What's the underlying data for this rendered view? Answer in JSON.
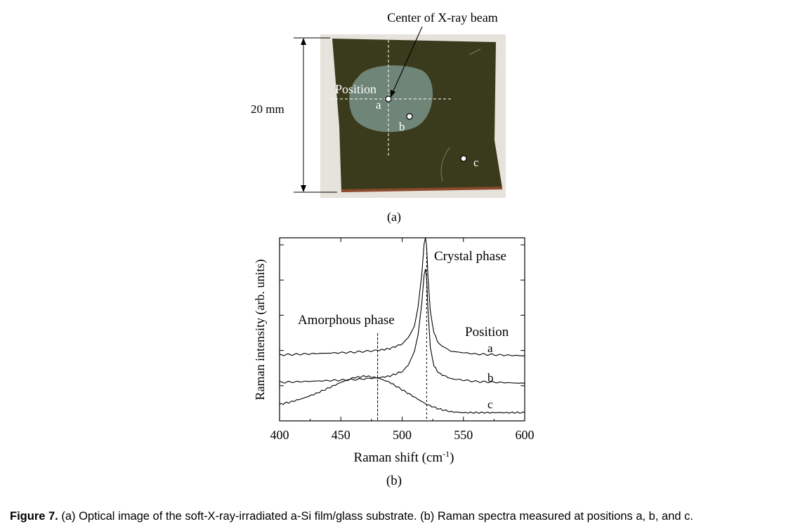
{
  "panel_a": {
    "annotation_beam": "Center of X-ray beam",
    "annotation_position": "Position",
    "scale_label": "20 mm",
    "point_labels": [
      "a",
      "b",
      "c"
    ],
    "sublabel": "(a)",
    "colors": {
      "film": "#3a3b1c",
      "irradiated_spot": "#6f8578",
      "markers": "#ffffff",
      "background": "#e6e2dc"
    }
  },
  "chart_data": {
    "type": "line",
    "xlabel_main": "Raman shift (cm",
    "xlabel_sup": "-1",
    "xlabel_tail": ")",
    "ylabel": "Raman intensity (arb. units)",
    "xlim": [
      400,
      600
    ],
    "xticks": [
      "400",
      "450",
      "500",
      "550",
      "600"
    ],
    "ylim": [
      0,
      1
    ],
    "annotations": {
      "crystal": "Crystal phase",
      "amorphous": "Amorphous phase",
      "position_header": "Position"
    },
    "reference_lines": [
      {
        "x": 480,
        "style": "dashed",
        "meaning": "amorphous"
      },
      {
        "x": 520,
        "style": "dashed",
        "meaning": "crystal"
      }
    ],
    "series": [
      {
        "name": "a",
        "x": [
          400,
          420,
          440,
          460,
          480,
          490,
          500,
          505,
          510,
          513,
          516,
          518,
          519,
          520,
          521,
          523,
          526,
          530,
          540,
          560,
          580,
          600
        ],
        "y": [
          0.36,
          0.365,
          0.37,
          0.375,
          0.385,
          0.395,
          0.42,
          0.45,
          0.52,
          0.62,
          0.8,
          0.97,
          1.0,
          0.95,
          0.8,
          0.6,
          0.48,
          0.42,
          0.38,
          0.365,
          0.36,
          0.355
        ]
      },
      {
        "name": "b",
        "x": [
          400,
          420,
          440,
          460,
          480,
          490,
          500,
          505,
          510,
          513,
          516,
          518,
          519,
          520,
          521,
          523,
          526,
          530,
          540,
          560,
          580,
          600
        ],
        "y": [
          0.21,
          0.215,
          0.22,
          0.225,
          0.235,
          0.245,
          0.27,
          0.3,
          0.38,
          0.47,
          0.64,
          0.8,
          0.83,
          0.78,
          0.62,
          0.4,
          0.3,
          0.26,
          0.23,
          0.215,
          0.21,
          0.205
        ]
      },
      {
        "name": "c",
        "x": [
          400,
          410,
          420,
          430,
          440,
          450,
          460,
          470,
          480,
          490,
          500,
          510,
          520,
          530,
          540,
          550,
          560,
          570,
          580,
          590,
          600
        ],
        "y": [
          0.09,
          0.105,
          0.125,
          0.15,
          0.18,
          0.21,
          0.235,
          0.245,
          0.235,
          0.21,
          0.17,
          0.13,
          0.09,
          0.065,
          0.05,
          0.045,
          0.045,
          0.045,
          0.045,
          0.045,
          0.045
        ]
      }
    ],
    "series_labels": [
      "a",
      "b",
      "c"
    ],
    "sublabel": "(b)"
  },
  "caption": {
    "bold": "Figure 7.",
    "text": " (a) Optical image of the soft-X-ray-irradiated a-Si film/glass substrate. (b) Raman spectra measured at positions a, b, and c."
  }
}
